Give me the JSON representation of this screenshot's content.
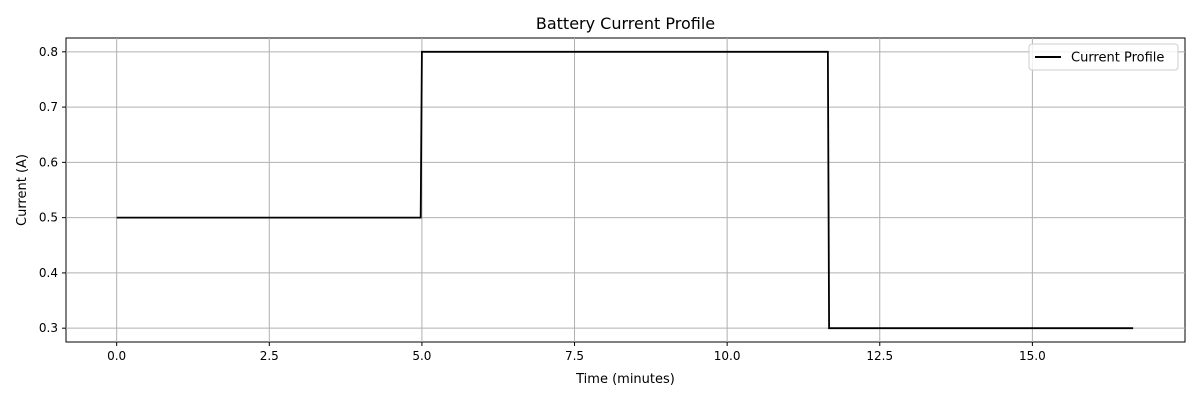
{
  "chart_data": {
    "type": "line",
    "title": "Battery Current Profile",
    "xlabel": "Time (minutes)",
    "ylabel": "Current (A)",
    "xlim": [
      -0.83,
      17.5
    ],
    "ylim": [
      0.275,
      0.825
    ],
    "x_ticks": [
      0.0,
      2.5,
      5.0,
      7.5,
      10.0,
      12.5,
      15.0
    ],
    "x_tick_labels": [
      "0.0",
      "2.5",
      "5.0",
      "7.5",
      "10.0",
      "12.5",
      "15.0"
    ],
    "y_ticks": [
      0.3,
      0.4,
      0.5,
      0.6,
      0.7,
      0.8
    ],
    "y_tick_labels": [
      "0.3",
      "0.4",
      "0.5",
      "0.6",
      "0.7",
      "0.8"
    ],
    "grid": true,
    "legend_position": "top-right",
    "series": [
      {
        "name": "Current Profile",
        "color": "#000000",
        "x": [
          0.0,
          4.98,
          5.0,
          11.65,
          11.67,
          16.65
        ],
        "y": [
          0.5,
          0.5,
          0.8,
          0.8,
          0.3,
          0.3
        ]
      }
    ]
  }
}
